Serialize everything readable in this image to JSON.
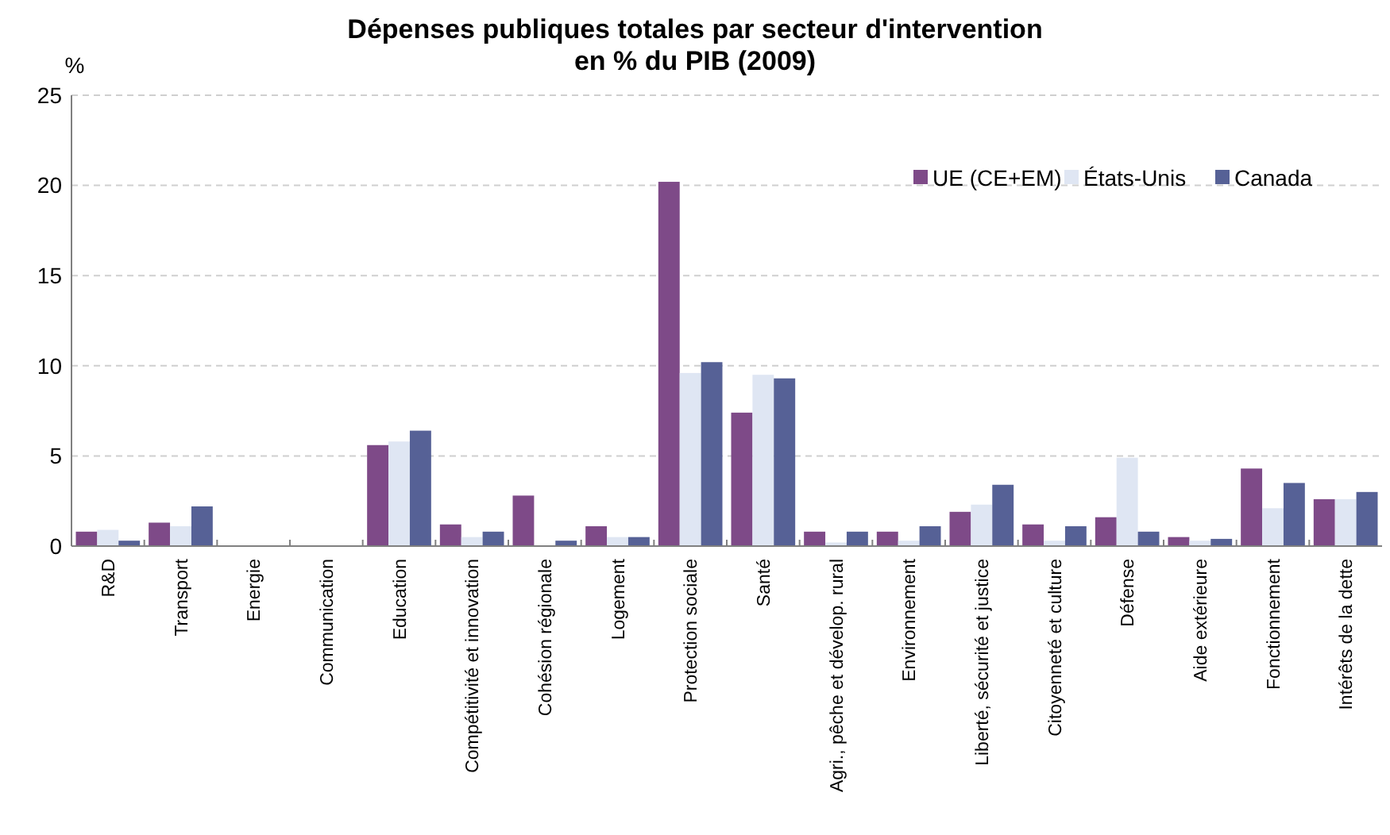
{
  "chart_data": {
    "type": "bar",
    "title": "Dépenses publiques totales par secteur d'intervention\nen % du PIB (2009)",
    "ylabel": "%",
    "categories": [
      "R&D",
      "Transport",
      "Energie",
      "Communication",
      "Education",
      "Compétitivité et innovation",
      "Cohésion régionale",
      "Logement",
      "Protection sociale",
      "Santé",
      "Agri., pêche et dévelop. rural",
      "Environnement",
      "Liberté, sécurité et justice",
      "Citoyenneté et culture",
      "Défense",
      "Aide extérieure",
      "Fonctionnement",
      "Intérêts de la dette"
    ],
    "series": [
      {
        "name": "UE (CE+EM)",
        "color": "#7e4a88",
        "values": [
          0.8,
          1.3,
          null,
          null,
          5.6,
          1.2,
          2.8,
          1.1,
          20.2,
          7.4,
          0.8,
          0.8,
          1.9,
          1.2,
          1.6,
          0.5,
          4.3,
          2.6
        ]
      },
      {
        "name": "États-Unis",
        "color": "#dfe6f3",
        "values": [
          0.9,
          1.1,
          null,
          null,
          5.8,
          0.5,
          0,
          0.5,
          9.6,
          9.5,
          0.2,
          0.3,
          2.3,
          0.3,
          4.9,
          0.3,
          2.1,
          2.6
        ]
      },
      {
        "name": "Canada",
        "color": "#566196",
        "values": [
          0.3,
          2.2,
          null,
          null,
          6.4,
          0.8,
          0.3,
          0.5,
          10.2,
          9.3,
          0.8,
          1.1,
          3.4,
          1.1,
          0.8,
          0.4,
          3.5,
          3.0
        ]
      }
    ],
    "ylim": [
      0,
      25
    ],
    "yticks": [
      0,
      5,
      10,
      15,
      20,
      25
    ],
    "grid": "y",
    "legend": "top right"
  }
}
